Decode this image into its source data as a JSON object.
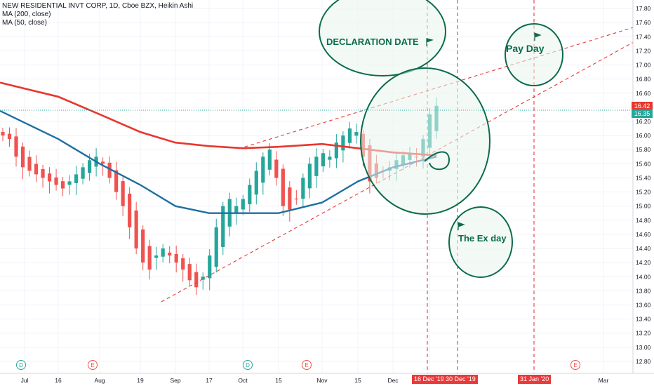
{
  "legend": {
    "symbol": "NEW RESIDENTIAL INVT CORP, 1D, Cboe BZX, Heikin Ashi",
    "ma200": "MA (200, close)",
    "ma50": "MA (50, close)"
  },
  "annotations": {
    "declaration": "DECLARATION DATE",
    "payday": "Pay Day",
    "exday": "The Ex day"
  },
  "price_tags": {
    "last": "16.42",
    "ma": "16.35"
  },
  "date_tags": [
    "16 Dec '19",
    "30 Dec '19",
    "31 Jan '20"
  ],
  "event_markers": [
    "D",
    "E",
    "D",
    "E",
    "E"
  ],
  "colors": {
    "up": "#26a69a",
    "down": "#ef5350",
    "ma200": "#e8372d",
    "ma50": "#1f6fa3",
    "annotation": "#0c6b4c",
    "dashed": "#e83a3a"
  },
  "chart_data": {
    "type": "candlestick",
    "title": "NEW RESIDENTIAL INVT CORP, 1D, Cboe BZX, Heikin Ashi",
    "x_tick_labels": [
      "Jul",
      "16",
      "Aug",
      "19",
      "Sep",
      "17",
      "Oct",
      "15",
      "Nov",
      "15",
      "Dec",
      "16",
      "Mar"
    ],
    "y_tick_labels": [
      "12.80",
      "13.00",
      "13.20",
      "13.40",
      "13.60",
      "13.80",
      "14.00",
      "14.20",
      "14.40",
      "14.60",
      "14.80",
      "15.00",
      "15.20",
      "15.40",
      "15.60",
      "15.80",
      "16.00",
      "16.20",
      "16.40",
      "16.60",
      "16.80",
      "17.00",
      "17.20",
      "17.40",
      "17.60",
      "17.80"
    ],
    "ylim": [
      12.7,
      17.9
    ],
    "last_price": 16.42,
    "series": [
      {
        "name": "MA (200, close)",
        "x": [
          "Jul 1",
          "Jul 16",
          "Aug 1",
          "Aug 19",
          "Sep 3",
          "Sep 17",
          "Oct 1",
          "Oct 15",
          "Nov 1",
          "Nov 15",
          "Dec 1",
          "Dec 16"
        ],
        "values": [
          16.75,
          16.55,
          16.3,
          16.05,
          15.9,
          15.85,
          15.82,
          15.84,
          15.88,
          15.82,
          15.76,
          15.72
        ]
      },
      {
        "name": "MA (50, close)",
        "x": [
          "Jul 1",
          "Jul 16",
          "Aug 1",
          "Aug 19",
          "Sep 3",
          "Sep 17",
          "Oct 1",
          "Oct 15",
          "Nov 1",
          "Nov 15",
          "Dec 1",
          "Dec 16"
        ],
        "values": [
          16.35,
          15.95,
          15.6,
          15.3,
          15.0,
          14.9,
          14.9,
          14.9,
          15.05,
          15.35,
          15.55,
          15.7
        ]
      }
    ],
    "candles_close": [
      16.0,
      15.95,
      15.7,
      15.55,
      15.5,
      15.45,
      15.4,
      15.35,
      15.3,
      15.25,
      15.35,
      15.45,
      15.55,
      15.65,
      15.7,
      15.6,
      15.4,
      15.2,
      15.0,
      14.7,
      14.4,
      14.2,
      14.1,
      14.3,
      14.4,
      14.3,
      14.2,
      14.1,
      13.95,
      13.85,
      14.0,
      14.3,
      14.7,
      15.0,
      15.1,
      15.0,
      15.1,
      15.3,
      15.5,
      15.7,
      15.8,
      15.4,
      15.0,
      14.95,
      15.1,
      15.4,
      15.6,
      15.7,
      15.75,
      15.7,
      15.9,
      16.0,
      16.1,
      16.05,
      15.7,
      15.35,
      15.4,
      15.5,
      15.55,
      15.65,
      15.72,
      15.75,
      15.7,
      15.95,
      16.3,
      16.42
    ]
  }
}
